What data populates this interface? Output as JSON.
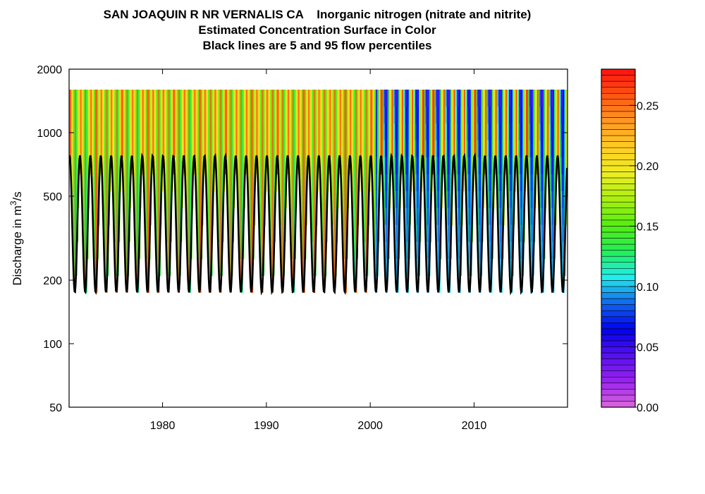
{
  "titles": {
    "line1": "SAN JOAQUIN R NR VERNALIS CA    Inorganic nitrogen (nitrate and nitrite)",
    "line2": "Estimated Concentration Surface in Color",
    "line3": "Black lines are 5 and 95 flow percentiles"
  },
  "chart_data": {
    "type": "heatmap",
    "title": "SAN JOAQUIN R NR VERNALIS CA    Inorganic nitrogen (nitrate and nitrite) — Estimated Concentration Surface in Color — Black lines are 5 and 95 flow percentiles",
    "xlabel": "",
    "ylabel_prefix": "Discharge in m",
    "ylabel_sup": "3",
    "ylabel_suffix": "/s",
    "xlim": [
      1971,
      2019
    ],
    "ylim": [
      50,
      2000
    ],
    "y_scale": "log",
    "x_ticks": [
      "1980",
      "1990",
      "2000",
      "2010"
    ],
    "x_tick_values": [
      1980,
      1990,
      2000,
      2010
    ],
    "y_ticks": [
      "50",
      "100",
      "200",
      "500",
      "1000",
      "2000"
    ],
    "y_tick_values": [
      50,
      100,
      200,
      500,
      1000,
      2000
    ],
    "surface_top_discharge": 1600,
    "colorbar": {
      "min": 0.0,
      "max": 0.28,
      "ticks": [
        "0.00",
        "0.05",
        "0.10",
        "0.15",
        "0.20",
        "0.25"
      ],
      "tick_values": [
        0.0,
        0.05,
        0.1,
        0.15,
        0.2,
        0.25
      ],
      "levels": 56,
      "colors": [
        "#dd66dd",
        "#9922ee",
        "#5511ee",
        "#0000ee",
        "#1166ee",
        "#22eeee",
        "#22ee55",
        "#55ee11",
        "#aaee11",
        "#eeee22",
        "#ffcc22",
        "#ff9922",
        "#ff5511",
        "#ff1111"
      ]
    },
    "flow_percentile_lines": {
      "percentile_5": {
        "low": 175,
        "high": 185
      },
      "percentile_95": {
        "low": 720,
        "high": 780
      },
      "cycles_per_year": 1,
      "start_year": 1971,
      "end_year": 2019
    }
  }
}
